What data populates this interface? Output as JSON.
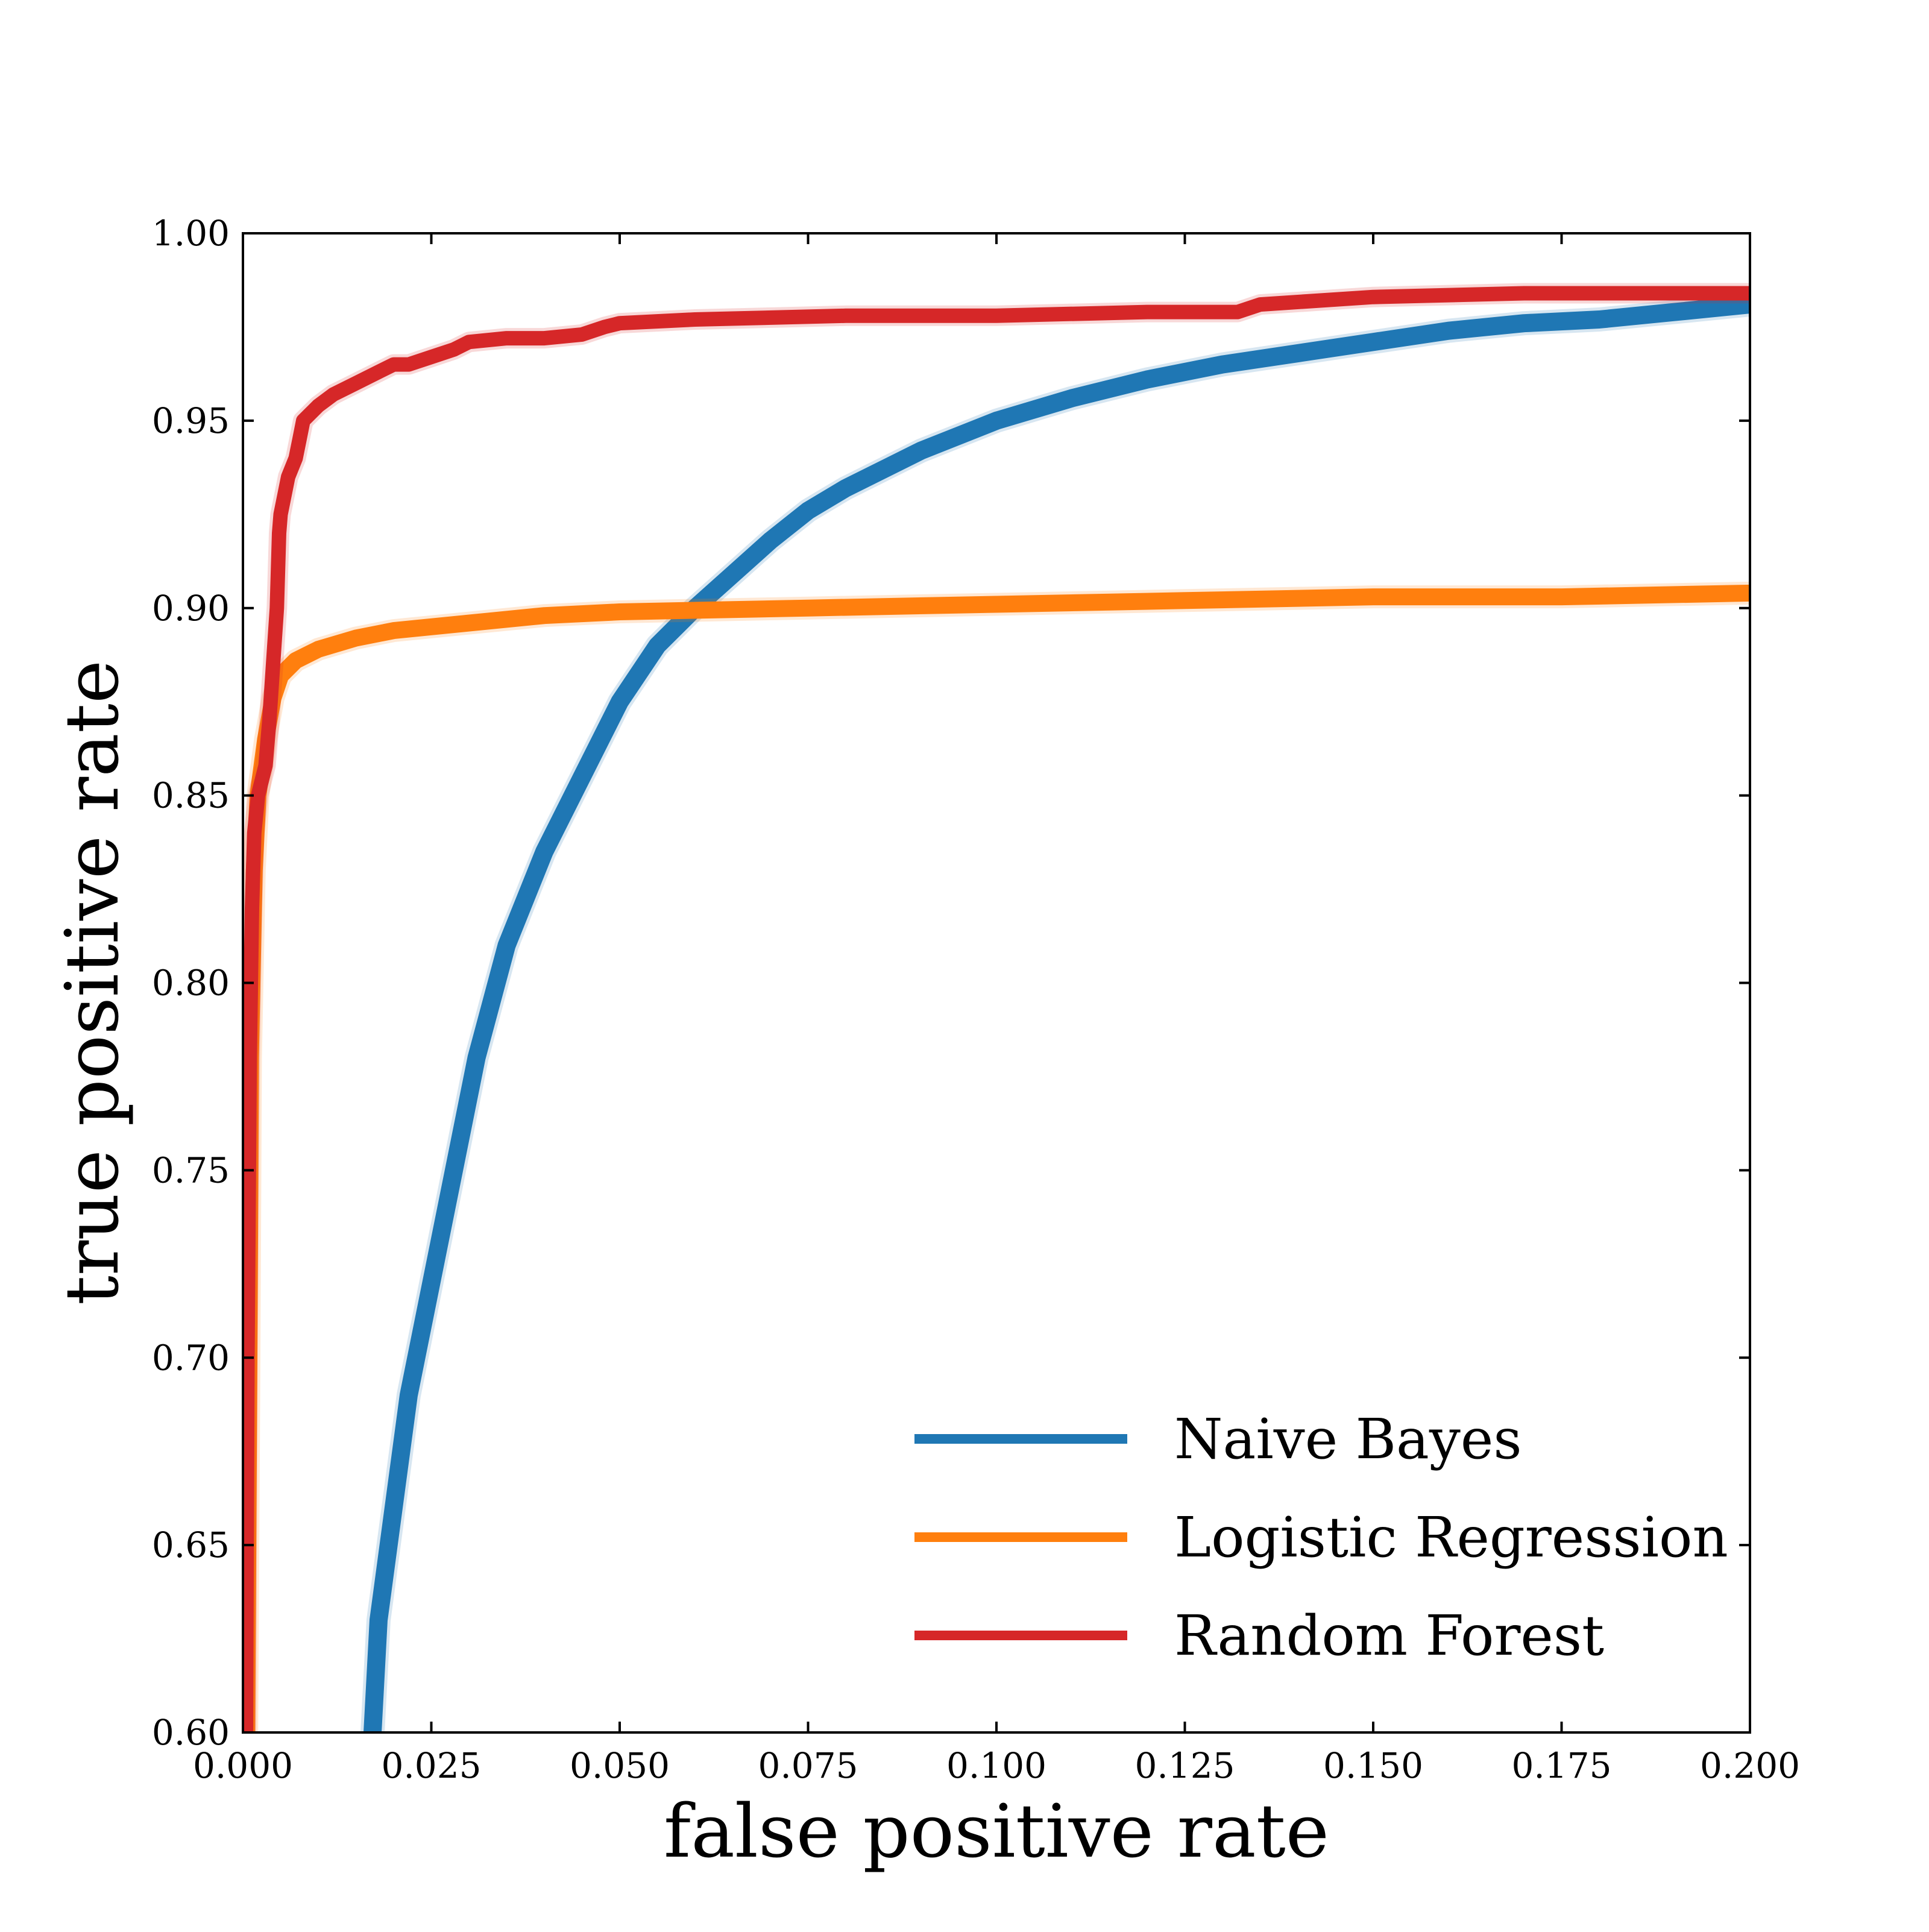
{
  "chart_data": {
    "type": "line",
    "xlabel": "false positive rate",
    "ylabel": "true positive rate",
    "xlim": [
      0.0,
      0.2
    ],
    "ylim": [
      0.6,
      1.0
    ],
    "x_ticks": [
      "0.000",
      "0.025",
      "0.050",
      "0.075",
      "0.100",
      "0.125",
      "0.150",
      "0.175",
      "0.200"
    ],
    "y_ticks": [
      "0.60",
      "0.65",
      "0.70",
      "0.75",
      "0.80",
      "0.85",
      "0.90",
      "0.95",
      "1.00"
    ],
    "grid": false,
    "legend_position": "bottom-right",
    "series": [
      {
        "name": "Naive Bayes",
        "color": "#1f77b4",
        "points": [
          [
            0.0172,
            0.6
          ],
          [
            0.018,
            0.63
          ],
          [
            0.02,
            0.66
          ],
          [
            0.022,
            0.69
          ],
          [
            0.025,
            0.72
          ],
          [
            0.028,
            0.75
          ],
          [
            0.031,
            0.78
          ],
          [
            0.035,
            0.81
          ],
          [
            0.04,
            0.835
          ],
          [
            0.045,
            0.855
          ],
          [
            0.05,
            0.875
          ],
          [
            0.055,
            0.89
          ],
          [
            0.06,
            0.9
          ],
          [
            0.065,
            0.909
          ],
          [
            0.07,
            0.918
          ],
          [
            0.075,
            0.926
          ],
          [
            0.08,
            0.932
          ],
          [
            0.09,
            0.942
          ],
          [
            0.1,
            0.95
          ],
          [
            0.11,
            0.956
          ],
          [
            0.12,
            0.961
          ],
          [
            0.13,
            0.965
          ],
          [
            0.14,
            0.968
          ],
          [
            0.15,
            0.971
          ],
          [
            0.16,
            0.974
          ],
          [
            0.17,
            0.976
          ],
          [
            0.18,
            0.977
          ],
          [
            0.19,
            0.979
          ],
          [
            0.2,
            0.981
          ]
        ]
      },
      {
        "name": "Logistic Regression",
        "color": "#ff7f0e",
        "points": [
          [
            0.0005,
            0.6
          ],
          [
            0.0008,
            0.7
          ],
          [
            0.001,
            0.78
          ],
          [
            0.0015,
            0.83
          ],
          [
            0.002,
            0.85
          ],
          [
            0.003,
            0.865
          ],
          [
            0.004,
            0.876
          ],
          [
            0.005,
            0.882
          ],
          [
            0.007,
            0.886
          ],
          [
            0.01,
            0.889
          ],
          [
            0.015,
            0.892
          ],
          [
            0.02,
            0.894
          ],
          [
            0.03,
            0.896
          ],
          [
            0.04,
            0.898
          ],
          [
            0.05,
            0.899
          ],
          [
            0.075,
            0.9
          ],
          [
            0.1,
            0.901
          ],
          [
            0.125,
            0.902
          ],
          [
            0.15,
            0.903
          ],
          [
            0.175,
            0.903
          ],
          [
            0.2,
            0.904
          ]
        ]
      },
      {
        "name": "Random Forest",
        "color": "#d62728",
        "points": [
          [
            0.0004,
            0.6
          ],
          [
            0.0006,
            0.7
          ],
          [
            0.0009,
            0.78
          ],
          [
            0.0012,
            0.82
          ],
          [
            0.0015,
            0.84
          ],
          [
            0.002,
            0.85
          ],
          [
            0.003,
            0.858
          ],
          [
            0.0035,
            0.87
          ],
          [
            0.004,
            0.885
          ],
          [
            0.0045,
            0.9
          ],
          [
            0.0048,
            0.92
          ],
          [
            0.005,
            0.925
          ],
          [
            0.006,
            0.935
          ],
          [
            0.007,
            0.94
          ],
          [
            0.0075,
            0.945
          ],
          [
            0.008,
            0.95
          ],
          [
            0.01,
            0.954
          ],
          [
            0.012,
            0.957
          ],
          [
            0.015,
            0.96
          ],
          [
            0.018,
            0.963
          ],
          [
            0.02,
            0.965
          ],
          [
            0.022,
            0.965
          ],
          [
            0.025,
            0.967
          ],
          [
            0.028,
            0.969
          ],
          [
            0.03,
            0.971
          ],
          [
            0.035,
            0.972
          ],
          [
            0.04,
            0.972
          ],
          [
            0.045,
            0.973
          ],
          [
            0.048,
            0.975
          ],
          [
            0.05,
            0.976
          ],
          [
            0.06,
            0.977
          ],
          [
            0.08,
            0.978
          ],
          [
            0.1,
            0.978
          ],
          [
            0.12,
            0.979
          ],
          [
            0.132,
            0.979
          ],
          [
            0.135,
            0.981
          ],
          [
            0.15,
            0.983
          ],
          [
            0.17,
            0.984
          ],
          [
            0.2,
            0.984
          ]
        ]
      }
    ]
  }
}
